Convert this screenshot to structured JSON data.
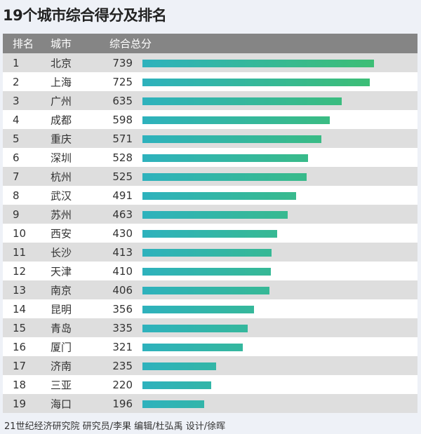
{
  "title": "19个城市综合得分及排名",
  "footer": "21世纪经济研究院 研究员/李果  编辑/杜弘禹  设计/徐晖",
  "chart_data": {
    "type": "bar",
    "title": "19个城市综合得分及排名",
    "headers": [
      "排名",
      "城市",
      "综合总分"
    ],
    "colors": {
      "bar_start": "#2eb2bd",
      "bar_end": "#3dbe75",
      "header_bg": "#858585"
    },
    "rows": [
      {
        "rank": "1",
        "city": "北京",
        "score": 739
      },
      {
        "rank": "2",
        "city": "上海",
        "score": 725
      },
      {
        "rank": "3",
        "city": "广州",
        "score": 635
      },
      {
        "rank": "4",
        "city": "成都",
        "score": 598
      },
      {
        "rank": "5",
        "city": "重庆",
        "score": 571
      },
      {
        "rank": "6",
        "city": "深圳",
        "score": 528
      },
      {
        "rank": "7",
        "city": "杭州",
        "score": 525
      },
      {
        "rank": "8",
        "city": "武汉",
        "score": 491
      },
      {
        "rank": "9",
        "city": "苏州",
        "score": 463
      },
      {
        "rank": "10",
        "city": "西安",
        "score": 430
      },
      {
        "rank": "11",
        "city": "长沙",
        "score": 413
      },
      {
        "rank": "12",
        "city": "天津",
        "score": 410
      },
      {
        "rank": "13",
        "city": "南京",
        "score": 406
      },
      {
        "rank": "14",
        "city": "昆明",
        "score": 356
      },
      {
        "rank": "15",
        "city": "青岛",
        "score": 335
      },
      {
        "rank": "16",
        "city": "厦门",
        "score": 321
      },
      {
        "rank": "17",
        "city": "济南",
        "score": 235
      },
      {
        "rank": "18",
        "city": "三亚",
        "score": 220
      },
      {
        "rank": "19",
        "city": "海口",
        "score": 196
      }
    ]
  }
}
